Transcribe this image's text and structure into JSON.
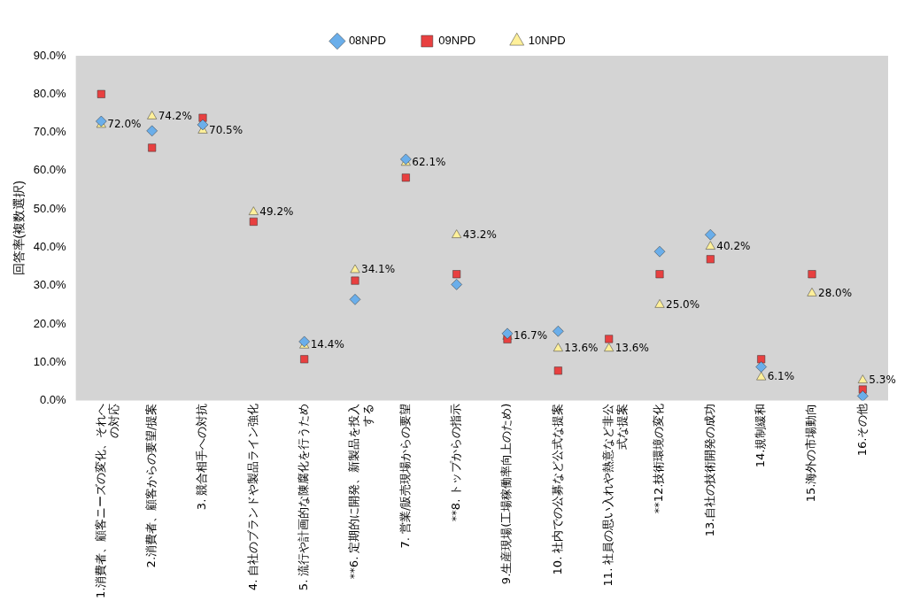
{
  "chart_data": {
    "type": "scatter",
    "ylabel": "回答率(複数選択)",
    "categories": [
      "1.消費者、顧客ニーズの変化、それへの対応",
      "2.消費者、顧客からの要望/提案",
      "3. 競合相手への対抗",
      "4. 自社のブランドや製品ライン強化",
      "5. 流行や計画的な陳腐化を行うため",
      "**6. 定期的に開発、新製品を投入する",
      "7. 営業/販売現場からの要望",
      "**8. トップからの指示",
      "9.生産現場(工場稼働率向上のため)",
      "10. 社内での公募など公式な提案",
      "11. 社員の思い入れや熱意など非公式な提案",
      "**12.技術環境の変化",
      "13.自社の技術開発の成功",
      "14.規制緩和",
      "15.海外の市場動向",
      "16.その他"
    ],
    "series": [
      {
        "name": "08NPD",
        "color": "#6aaeea",
        "marker": "diamond",
        "values": [
          72.9,
          70.4,
          72.0,
          null,
          15.4,
          26.4,
          63.0,
          30.3,
          17.5,
          18.1,
          null,
          38.9,
          43.3,
          8.8,
          null,
          1.2
        ]
      },
      {
        "name": "09NPD",
        "color": "#e84040",
        "marker": "square",
        "values": [
          80.0,
          66.0,
          73.8,
          46.7,
          10.8,
          31.3,
          58.2,
          33.0,
          16.0,
          7.8,
          16.1,
          33.0,
          36.9,
          10.8,
          33.0,
          2.9
        ]
      },
      {
        "name": "10NPD",
        "color": "#fff09a",
        "marker": "triangle",
        "values": [
          72.0,
          74.2,
          70.5,
          49.2,
          14.4,
          34.1,
          62.1,
          43.2,
          16.7,
          13.6,
          13.6,
          25.0,
          40.2,
          6.1,
          28.0,
          5.3
        ],
        "value_labels": [
          "72.0%",
          "74.2%",
          "70.5%",
          "49.2%",
          "14.4%",
          "34.1%",
          "62.1%",
          "43.2%",
          "16.7%",
          "13.6%",
          "13.6%",
          "25.0%",
          "40.2%",
          "6.1%",
          "28.0%",
          "5.3%"
        ]
      }
    ],
    "ylim": [
      0,
      90
    ],
    "yticks": [
      {
        "value": 0,
        "label": "0.0%"
      },
      {
        "value": 10,
        "label": "10.0%"
      },
      {
        "value": 20,
        "label": "20.0%"
      },
      {
        "value": 30,
        "label": "30.0%"
      },
      {
        "value": 40,
        "label": "40.0%"
      },
      {
        "value": 50,
        "label": "50.0%"
      },
      {
        "value": 60,
        "label": "60.0%"
      },
      {
        "value": 70,
        "label": "70.0%"
      },
      {
        "value": 80,
        "label": "80.0%"
      },
      {
        "value": 90,
        "label": "90.0%"
      }
    ],
    "grid": false,
    "legend": "top"
  }
}
